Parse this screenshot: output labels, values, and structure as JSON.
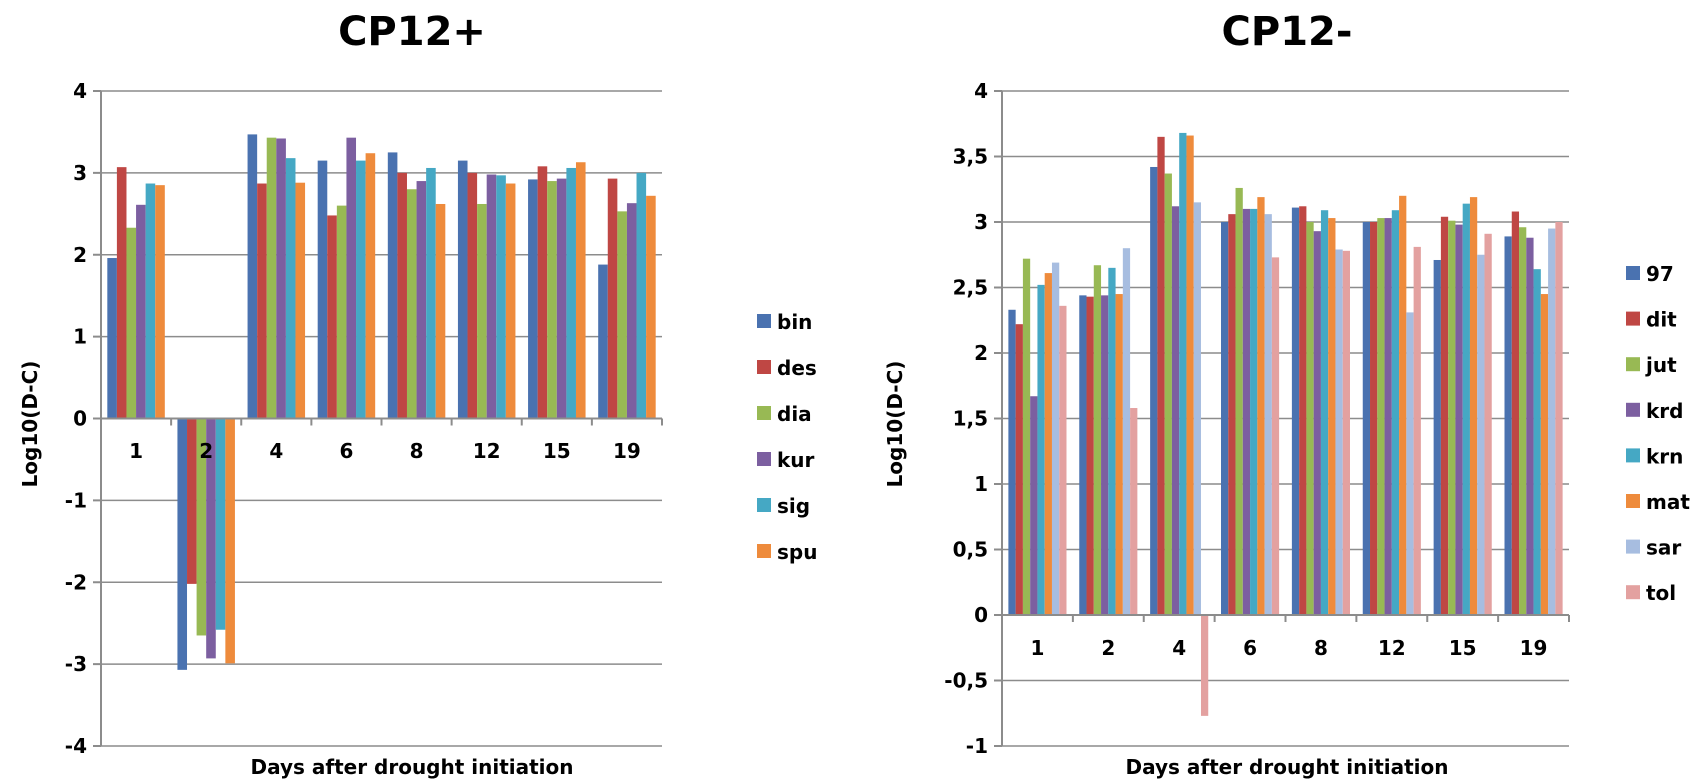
{
  "chart_data": [
    {
      "type": "bar",
      "title": "CP12+",
      "xlabel": "Days after drought initiation",
      "ylabel": "Log10(D-C)",
      "ylim": [
        -4,
        4
      ],
      "yticks": [
        "-4",
        "-3",
        "-2",
        "-1",
        "0",
        "1",
        "2",
        "3",
        "4"
      ],
      "grid": true,
      "legend_position": "right",
      "categories": [
        "1",
        "2",
        "4",
        "6",
        "8",
        "12",
        "15",
        "19"
      ],
      "series": [
        {
          "name": "bin",
          "color": "#4a72b0",
          "values": [
            1.96,
            -3.07,
            3.47,
            3.15,
            3.25,
            3.15,
            2.92,
            1.88
          ]
        },
        {
          "name": "des",
          "color": "#bf4744",
          "values": [
            3.07,
            -2.02,
            2.87,
            2.48,
            3.0,
            3.0,
            3.08,
            2.93
          ]
        },
        {
          "name": "dia",
          "color": "#98b954",
          "values": [
            2.33,
            -2.65,
            3.43,
            2.6,
            2.8,
            2.62,
            2.9,
            2.53
          ]
        },
        {
          "name": "kur",
          "color": "#7c5fa0",
          "values": [
            2.61,
            -2.93,
            3.42,
            3.43,
            2.9,
            2.98,
            2.93,
            2.63
          ]
        },
        {
          "name": "sig",
          "color": "#45a8c4",
          "values": [
            2.87,
            -2.58,
            3.18,
            3.15,
            3.06,
            2.97,
            3.06,
            3.0
          ]
        },
        {
          "name": "spu",
          "color": "#ee8b3c",
          "values": [
            2.85,
            -2.99,
            2.88,
            3.24,
            2.62,
            2.87,
            3.13,
            2.72
          ]
        }
      ]
    },
    {
      "type": "bar",
      "title": "CP12-",
      "xlabel": "Days after drought initiation",
      "ylabel": "Log10(D-C)",
      "ylim": [
        -1,
        4
      ],
      "yticks": [
        "-1",
        "-0,5",
        "0",
        "0,5",
        "1",
        "1,5",
        "2",
        "2,5",
        "3",
        "3,5",
        "4"
      ],
      "grid": true,
      "legend_position": "right",
      "categories": [
        "1",
        "2",
        "4",
        "6",
        "8",
        "12",
        "15",
        "19"
      ],
      "series": [
        {
          "name": "97",
          "color": "#4a72b0",
          "values": [
            2.33,
            2.44,
            3.42,
            3.0,
            3.11,
            3.0,
            2.71,
            2.89
          ]
        },
        {
          "name": "dit",
          "color": "#bf4744",
          "values": [
            2.22,
            2.43,
            3.65,
            3.06,
            3.12,
            3.0,
            3.04,
            3.08
          ]
        },
        {
          "name": "jut",
          "color": "#98b954",
          "values": [
            2.72,
            2.67,
            3.37,
            3.26,
            3.0,
            3.03,
            3.01,
            2.96
          ]
        },
        {
          "name": "krd",
          "color": "#7c5fa0",
          "values": [
            1.67,
            2.44,
            3.12,
            3.1,
            2.93,
            3.03,
            2.98,
            2.88
          ]
        },
        {
          "name": "krn",
          "color": "#45a8c4",
          "values": [
            2.52,
            2.65,
            3.68,
            3.1,
            3.09,
            3.09,
            3.14,
            2.64
          ]
        },
        {
          "name": "mat",
          "color": "#ee8b3c",
          "values": [
            2.61,
            2.45,
            3.66,
            3.19,
            3.03,
            3.2,
            3.19,
            2.45
          ]
        },
        {
          "name": "sar",
          "color": "#a7bde0",
          "values": [
            2.69,
            2.8,
            3.15,
            3.06,
            2.79,
            2.31,
            2.75,
            2.95
          ]
        },
        {
          "name": "tol",
          "color": "#e3a1a0",
          "values": [
            2.36,
            1.58,
            -0.77,
            2.73,
            2.78,
            2.81,
            2.91,
            3.0
          ]
        }
      ]
    }
  ]
}
